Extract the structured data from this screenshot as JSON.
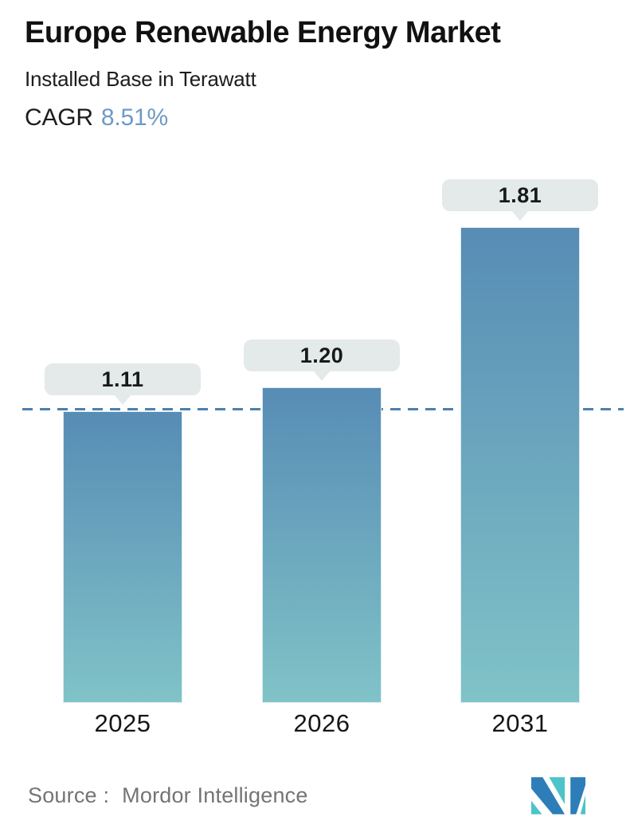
{
  "header": {
    "title": "Europe Renewable Energy Market",
    "subtitle": "Installed Base in Terawatt",
    "cagr_label": "CAGR",
    "cagr_value": "8.51%"
  },
  "chart_data": {
    "type": "bar",
    "title": "Europe Renewable Energy Market",
    "subtitle": "Installed Base in Terawatt",
    "unit": "Terawatt",
    "categories": [
      "2025",
      "2026",
      "2031"
    ],
    "values": [
      1.11,
      1.2,
      1.81
    ],
    "value_labels": [
      "1.11",
      "1.20",
      "1.81"
    ],
    "cagr_percent": 8.51,
    "reference_line_value": 1.11,
    "reference_line_style": "dashed",
    "ylim": [
      0,
      2.0
    ],
    "grid": false,
    "legend": false,
    "xlabel": "",
    "ylabel": "Installed Base (TW)"
  },
  "style": {
    "bar_gradient_top": "#578cb5",
    "bar_gradient_bottom": "#80c3c7",
    "reference_line_color": "#4d80ae",
    "tooltip_bg": "#e4eae9",
    "tooltip_text": "#17191c",
    "cagr_value_color": "#6d9ac6"
  },
  "footer": {
    "source_label": "Source :",
    "source_name": "Mordor Intelligence",
    "logo_name": "mordor-intelligence-logo",
    "logo_blue": "#2d7eb8",
    "logo_teal": "#4cc4c9"
  }
}
